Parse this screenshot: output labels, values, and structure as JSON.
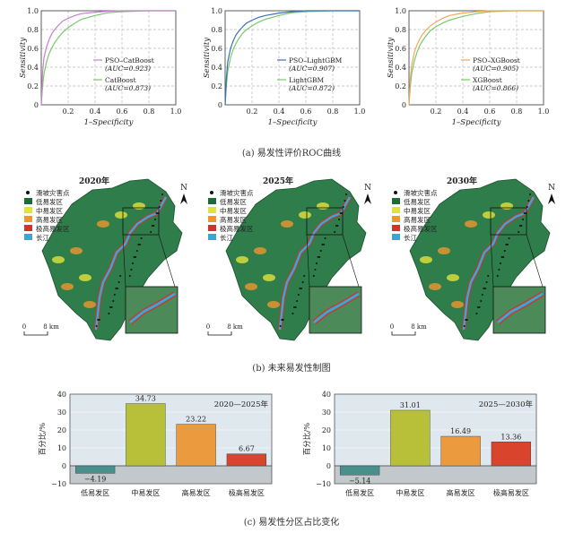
{
  "captions": {
    "a": "(a) 易发性评价ROC曲线",
    "b": "(b) 未来易发性制图",
    "c": "(c) 易发性分区占比变化"
  },
  "roc_axis": {
    "ylabel": "Sensitivity",
    "xlabel": "1–Specificity",
    "xticks": [
      "0.2",
      "0.4",
      "0.6",
      "0.8",
      "1.0"
    ],
    "yticks": [
      "0",
      "0.2",
      "0.4",
      "0.6",
      "0.8",
      "1.0"
    ]
  },
  "maps": [
    {
      "year": "2020年",
      "scale": "8 km"
    },
    {
      "year": "2025年",
      "scale": "8 km"
    },
    {
      "year": "2030年",
      "scale": "8 km"
    }
  ],
  "map_legend": [
    {
      "label": "滑坡灾害点",
      "color": "#111111",
      "kind": "dot"
    },
    {
      "label": "低易发区",
      "color": "#1e6b3a",
      "kind": "box"
    },
    {
      "label": "中易发区",
      "color": "#e3e23a",
      "kind": "box"
    },
    {
      "label": "高易发区",
      "color": "#f0962e",
      "kind": "box"
    },
    {
      "label": "极高易发区",
      "color": "#d5302a",
      "kind": "box"
    },
    {
      "label": "长江",
      "color": "#3aa6d6",
      "kind": "box"
    }
  ],
  "north_label": "N",
  "chart_data": [
    {
      "type": "line",
      "ylabel": "Sensitivity",
      "xlabel": "1–Specificity",
      "xlim": [
        0,
        1
      ],
      "ylim": [
        0,
        1
      ],
      "legend_position": "bottom-right",
      "series": [
        {
          "name": "PSO–CatBoost",
          "auc_text": "(AUC=0.923)",
          "color": "#c77fd0",
          "x": [
            0,
            0.01,
            0.02,
            0.04,
            0.06,
            0.08,
            0.1,
            0.13,
            0.16,
            0.2,
            0.25,
            0.3,
            0.4,
            0.5,
            0.6,
            0.8,
            1.0
          ],
          "y": [
            0,
            0.35,
            0.5,
            0.62,
            0.7,
            0.76,
            0.8,
            0.85,
            0.89,
            0.92,
            0.95,
            0.97,
            0.985,
            0.995,
            1,
            1,
            1
          ]
        },
        {
          "name": "CatBoost",
          "auc_text": "(AUC=0.873)",
          "color": "#7bc86c",
          "x": [
            0,
            0.01,
            0.02,
            0.04,
            0.06,
            0.08,
            0.1,
            0.13,
            0.16,
            0.2,
            0.25,
            0.3,
            0.4,
            0.5,
            0.6,
            0.8,
            1.0
          ],
          "y": [
            0,
            0.2,
            0.33,
            0.46,
            0.55,
            0.61,
            0.66,
            0.72,
            0.77,
            0.82,
            0.87,
            0.91,
            0.95,
            0.98,
            0.99,
            1,
            1
          ]
        }
      ]
    },
    {
      "type": "line",
      "ylabel": "Sensitivity",
      "xlabel": "1–Specificity",
      "xlim": [
        0,
        1
      ],
      "ylim": [
        0,
        1
      ],
      "legend_position": "bottom-right",
      "series": [
        {
          "name": "PSO–LightGBM",
          "auc_text": "(AUC=0.907)",
          "color": "#3b6fb8",
          "x": [
            0,
            0.01,
            0.02,
            0.04,
            0.06,
            0.08,
            0.1,
            0.13,
            0.16,
            0.2,
            0.25,
            0.3,
            0.4,
            0.5,
            0.6,
            0.8,
            1.0
          ],
          "y": [
            0,
            0.3,
            0.46,
            0.6,
            0.68,
            0.74,
            0.78,
            0.83,
            0.87,
            0.9,
            0.93,
            0.95,
            0.975,
            0.99,
            1,
            1,
            1
          ]
        },
        {
          "name": "LightGBM",
          "auc_text": "(AUC=0.872)",
          "color": "#7bc86c",
          "x": [
            0,
            0.01,
            0.02,
            0.04,
            0.06,
            0.08,
            0.1,
            0.13,
            0.16,
            0.2,
            0.25,
            0.3,
            0.4,
            0.5,
            0.6,
            0.8,
            1.0
          ],
          "y": [
            0,
            0.22,
            0.36,
            0.5,
            0.59,
            0.65,
            0.7,
            0.76,
            0.8,
            0.84,
            0.88,
            0.91,
            0.95,
            0.98,
            0.99,
            1,
            1
          ]
        }
      ]
    },
    {
      "type": "line",
      "ylabel": "Sensitivity",
      "xlabel": "1–Specificity",
      "xlim": [
        0,
        1
      ],
      "ylim": [
        0,
        1
      ],
      "legend_position": "bottom-right",
      "series": [
        {
          "name": "PSO–XGBoost",
          "auc_text": "(AUC=0.905)",
          "color": "#f2a85a",
          "x": [
            0,
            0.01,
            0.02,
            0.04,
            0.06,
            0.08,
            0.1,
            0.13,
            0.16,
            0.2,
            0.25,
            0.3,
            0.4,
            0.5,
            0.6,
            0.8,
            1.0
          ],
          "y": [
            0,
            0.28,
            0.42,
            0.56,
            0.64,
            0.7,
            0.75,
            0.8,
            0.84,
            0.88,
            0.92,
            0.95,
            0.975,
            0.99,
            1,
            1,
            1
          ]
        },
        {
          "name": "XGBoost",
          "auc_text": "(AUC=0.866)",
          "color": "#7bc86c",
          "x": [
            0,
            0.01,
            0.02,
            0.04,
            0.06,
            0.08,
            0.1,
            0.13,
            0.16,
            0.2,
            0.25,
            0.3,
            0.4,
            0.5,
            0.6,
            0.8,
            1.0
          ],
          "y": [
            0,
            0.2,
            0.33,
            0.47,
            0.56,
            0.63,
            0.68,
            0.74,
            0.79,
            0.83,
            0.87,
            0.9,
            0.94,
            0.97,
            0.99,
            1,
            1
          ]
        }
      ]
    },
    {
      "type": "bar",
      "title": "2020—2025年",
      "ylabel": "百分比/%",
      "categories": [
        "低易发区",
        "中易发区",
        "高易发区",
        "极高易发区"
      ],
      "values": [
        -4.19,
        34.73,
        23.22,
        6.67
      ],
      "value_labels": [
        "−4.19",
        "34.73",
        "23.22",
        "6.67"
      ],
      "colors": [
        "#4a8f8c",
        "#b8c03a",
        "#eb9b3e",
        "#d8452c"
      ],
      "ylim": [
        -10,
        40
      ],
      "yticks": [
        "40",
        "30",
        "20",
        "10",
        "0",
        "−10"
      ]
    },
    {
      "type": "bar",
      "title": "2025—2030年",
      "ylabel": "百分比/%",
      "categories": [
        "低易发区",
        "中易发区",
        "高易发区",
        "极高易发区"
      ],
      "values": [
        -5.14,
        31.01,
        16.49,
        13.36
      ],
      "value_labels": [
        "−5.14",
        "31.01",
        "16.49",
        "13.36"
      ],
      "colors": [
        "#4a8f8c",
        "#b8c03a",
        "#eb9b3e",
        "#d8452c"
      ],
      "ylim": [
        -10,
        40
      ],
      "yticks": [
        "40",
        "30",
        "20",
        "10",
        "0",
        "−10"
      ]
    }
  ]
}
